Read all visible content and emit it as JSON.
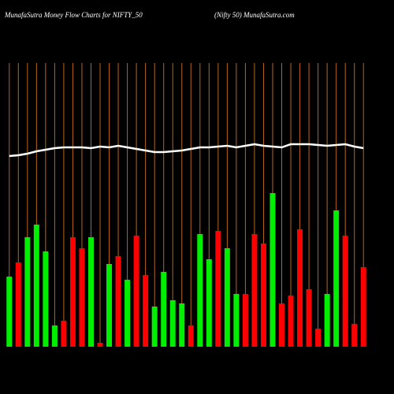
{
  "chart_data": {
    "type": "bar",
    "title": "MunafaSutra  Money Flow  Charts for NIFTY_50",
    "subtitle": "(Nifty 50) MunafaSutra.com",
    "values": [
      89,
      107,
      139,
      155,
      121,
      27,
      33,
      139,
      125,
      139,
      5,
      105,
      115,
      85,
      141,
      91,
      51,
      95,
      59,
      55,
      27,
      143,
      111,
      147,
      125,
      67,
      67,
      143,
      131,
      195,
      55,
      65,
      149,
      73,
      23,
      67,
      173,
      141,
      29,
      101
    ],
    "bar_colors": [
      "#00ee00",
      "#ff0000",
      "#00ee00",
      "#00ee00",
      "#00ee00",
      "#00ee00",
      "#ff0000",
      "#ff0000",
      "#ff0000",
      "#00ee00",
      "#ff0000",
      "#00ee00",
      "#ff0000",
      "#00ee00",
      "#ff0000",
      "#ff0000",
      "#00ee00",
      "#00ee00",
      "#00ee00",
      "#00ee00",
      "#ff0000",
      "#00ee00",
      "#00ee00",
      "#ff0000",
      "#00ee00",
      "#00ee00",
      "#ff0000",
      "#ff0000",
      "#ff0000",
      "#00ee00",
      "#ff0000",
      "#ff0000",
      "#ff0000",
      "#ff0000",
      "#ff0000",
      "#00ee00",
      "#00ee00",
      "#ff0000",
      "#ff0000",
      "#ff0000"
    ],
    "line_values": [
      242,
      243,
      245,
      248,
      250,
      252,
      253,
      253,
      253,
      252,
      254,
      253,
      255,
      253,
      251,
      249,
      247,
      247,
      248,
      249,
      251,
      253,
      253,
      254,
      255,
      253,
      255,
      257,
      255,
      254,
      253,
      257,
      257,
      257,
      256,
      255,
      256,
      257,
      254,
      252
    ],
    "line_color": "#ffffff",
    "ylim": [
      0,
      360
    ],
    "grid": true,
    "grid_color": "#b8651a"
  }
}
